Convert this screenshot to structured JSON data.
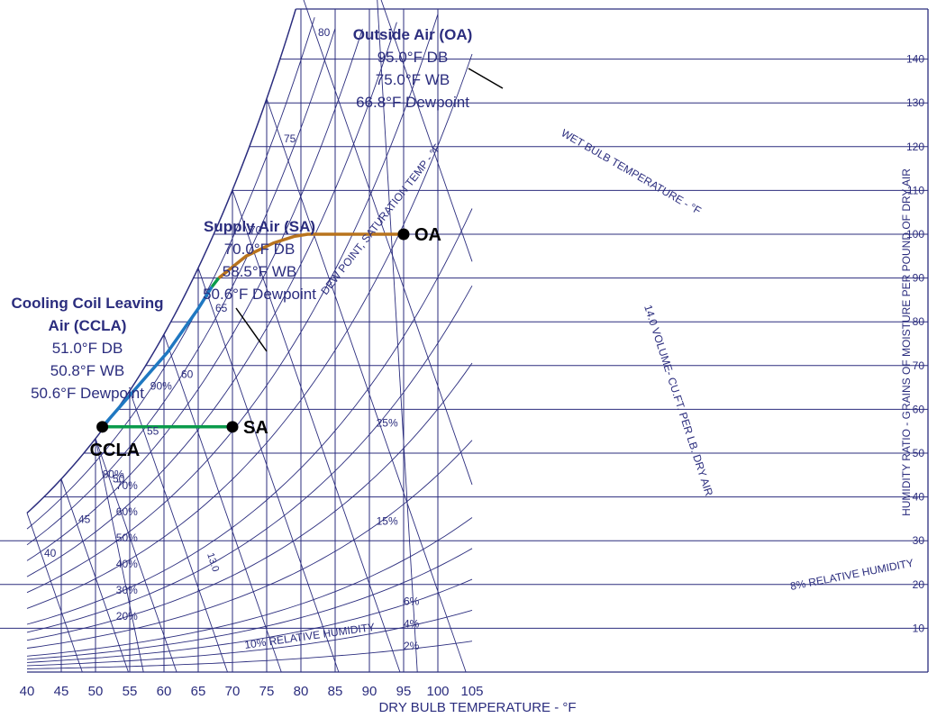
{
  "chart_data": {
    "type": "line",
    "title": "",
    "xlabel": "DRY BULB TEMPERATURE - °F",
    "ylabel": "HUMIDITY RATIO - GRAINS OF MOISTURE PER POUND OF DRY AIR",
    "xlim": [
      40,
      105
    ],
    "ylim": [
      0,
      150
    ],
    "x_ticks": [
      40,
      45,
      50,
      55,
      60,
      65,
      70,
      75,
      80,
      85,
      90,
      95,
      100,
      105
    ],
    "y_ticks": [
      10,
      20,
      30,
      40,
      50,
      60,
      70,
      80,
      90,
      100,
      110,
      120,
      130,
      140
    ],
    "curve_labels": {
      "saturation": "DEW POINT, SATURATION TEMP - °F",
      "wet_bulb": "WET BULB TEMPERATURE - °F",
      "volume": "14.0 VOLUME- CU.FT. PER LB. DRY AIR",
      "volume_small": "13.0",
      "rh_low": "10% RELATIVE HUMIDITY",
      "rh_right": "8% RELATIVE HUMIDITY"
    },
    "rh_labels": [
      "90%",
      "80%",
      "70%",
      "60%",
      "50%",
      "40%",
      "30%",
      "20%"
    ],
    "rh_right_labels": [
      "25%",
      "15%",
      "6%",
      "4%",
      "2%"
    ],
    "wb_labels": [
      "80",
      "75",
      "70",
      "65",
      "60",
      "55",
      "50",
      "45",
      "40"
    ],
    "series": [
      {
        "x": [
          51.0,
          70.0
        ],
        "y": [
          56,
          56
        ],
        "color": "#0a9b4b"
      },
      {
        "x": [
          51.0,
          60.5,
          65.0,
          67.0
        ],
        "y": [
          56,
          73,
          83,
          88
        ],
        "color": "#1f78c1"
      },
      {
        "x": [
          67.0,
          68.0
        ],
        "y": [
          88,
          90
        ],
        "color": "#0a9b4b"
      },
      {
        "x": [
          68.0,
          72.0,
          76.0,
          79.0,
          81.0,
          82.0,
          95.0
        ],
        "y": [
          90,
          95,
          98,
          99.5,
          100,
          100,
          100
        ],
        "color": "#b8731d"
      }
    ],
    "points": [
      {
        "label": "OA",
        "x": 95.0,
        "y": 100
      },
      {
        "label": "SA",
        "x": 70.0,
        "y": 56
      },
      {
        "label": "CCLA",
        "x": 51.0,
        "y": 56
      }
    ],
    "annotations": [
      {
        "name": "outside-air",
        "lines": [
          "Outside Air (OA)",
          "95.0°F DB",
          "75.0°F WB",
          "66.8°F Dewpoint"
        ]
      },
      {
        "name": "supply-air",
        "lines": [
          "Supply Air (SA)",
          "70.0°F DB",
          "58.5°F WB",
          "50.6°F Dewpoint"
        ]
      },
      {
        "name": "ccla",
        "lines": [
          "Cooling Coil Leaving",
          "Air (CCLA)",
          "51.0°F DB",
          "50.8°F WB",
          "50.6°F Dewpoint"
        ]
      }
    ]
  }
}
